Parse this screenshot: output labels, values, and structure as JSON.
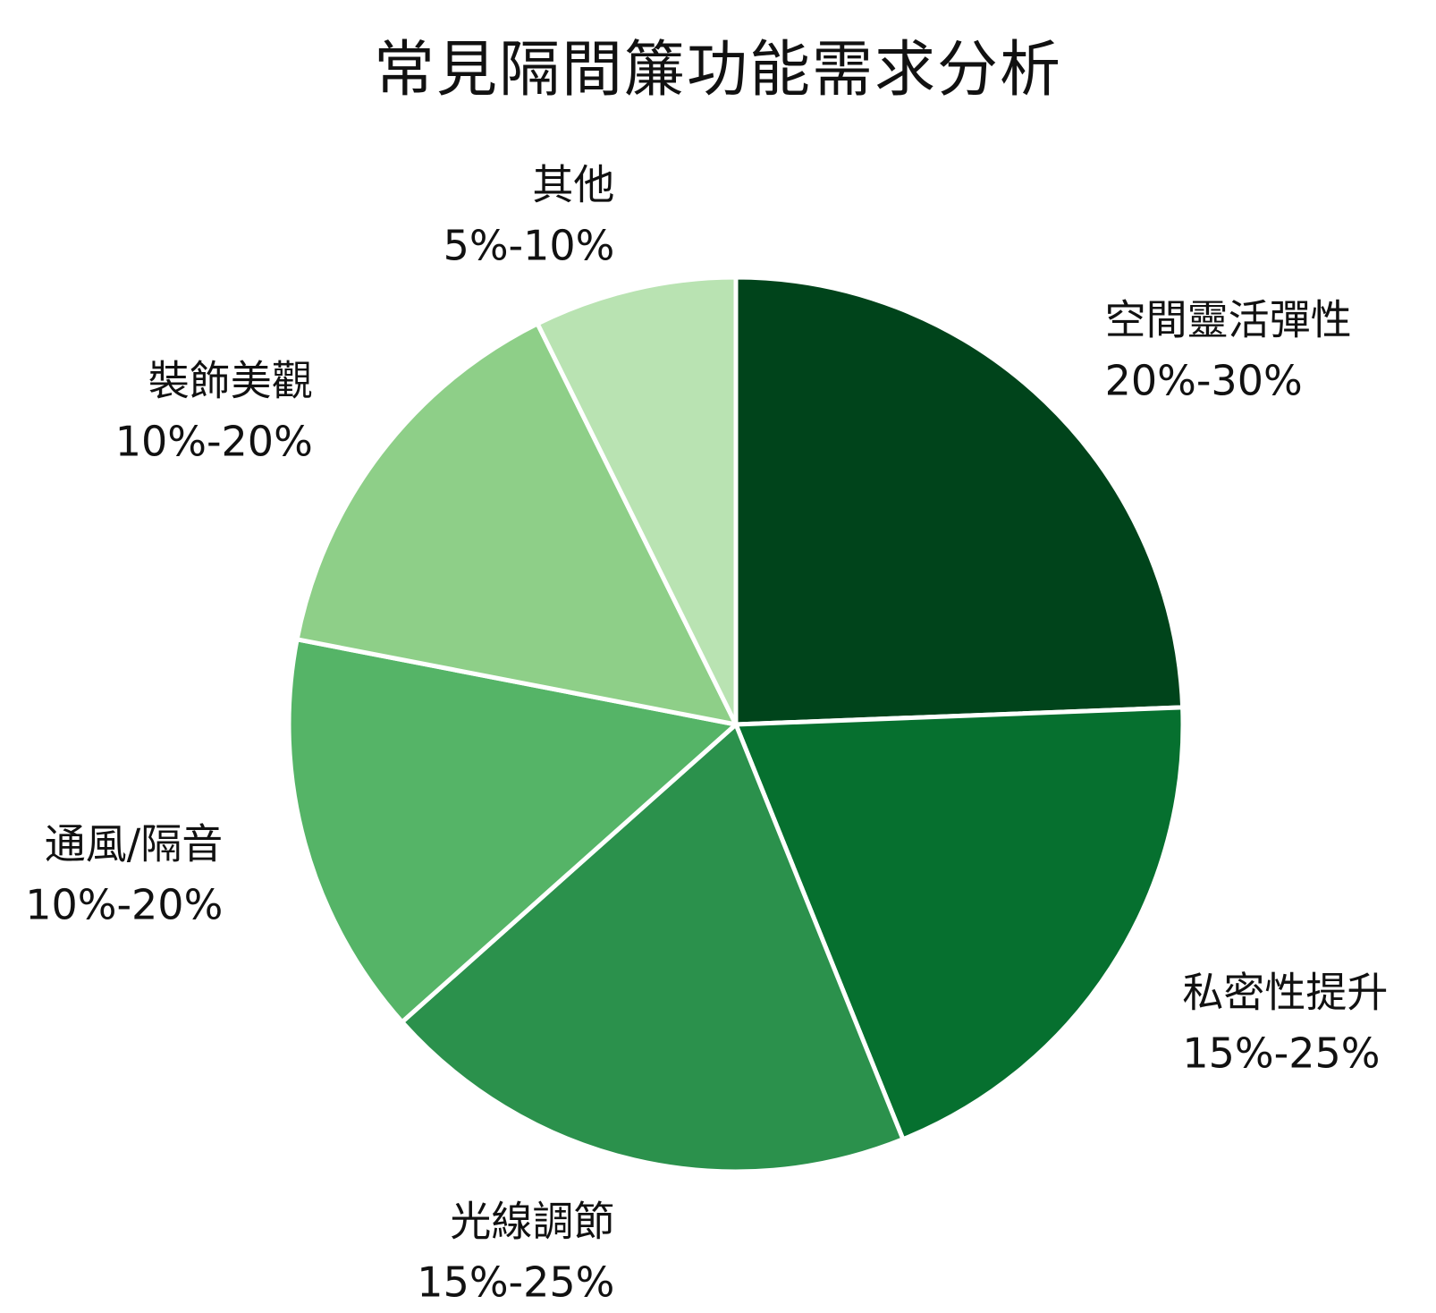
{
  "chart_data": {
    "type": "pie",
    "title": "常見隔間簾功能需求分析",
    "slices": [
      {
        "label": "空間靈活彈性",
        "range": "20%-30%",
        "value": 25,
        "color": "#00441b"
      },
      {
        "label": "私密性提升",
        "range": "15%-25%",
        "value": 20,
        "color": "#06702f"
      },
      {
        "label": "光線調節",
        "range": "15%-25%",
        "value": 20,
        "color": "#2b914c"
      },
      {
        "label": "通風/隔音",
        "range": "10%-20%",
        "value": 15,
        "color": "#55b467"
      },
      {
        "label": "裝飾美觀",
        "range": "10%-20%",
        "value": 15,
        "color": "#8ecf88"
      },
      {
        "label": "其他",
        "range": "5%-10%",
        "value": 7.5,
        "color": "#b9e3b2"
      }
    ],
    "legend": "none",
    "start_angle": "12 o'clock",
    "direction": "clockwise"
  }
}
